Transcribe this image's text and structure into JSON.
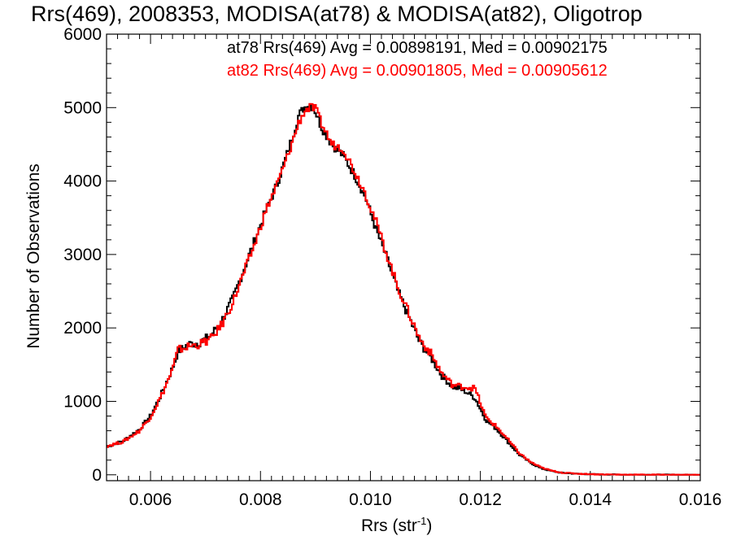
{
  "chart_data": {
    "type": "line",
    "title": "Rrs(469), 2008353, MODISA(at78) & MODISA(at82), Oligotrop",
    "xlabel": "Rrs (str",
    "xlabel_sup": "-1",
    "xlabel_close": ")",
    "ylabel": "Number of Observations",
    "xlim": [
      0.0052,
      0.016
    ],
    "ylim": [
      -80,
      6000
    ],
    "x_ticks": [
      0.006,
      0.008,
      0.01,
      0.012,
      0.014,
      0.016
    ],
    "x_tick_labels": [
      "0.006",
      "0.008",
      "0.010",
      "0.012",
      "0.014",
      "0.016"
    ],
    "y_ticks": [
      0,
      1000,
      2000,
      3000,
      4000,
      5000,
      6000
    ],
    "y_tick_labels": [
      "0",
      "1000",
      "2000",
      "3000",
      "4000",
      "5000",
      "6000"
    ],
    "legend_placement": "top-right",
    "legend": [
      {
        "text": "at78 Rrs(469) Avg = 0.00898191, Med = 0.00902175",
        "color": "#000000"
      },
      {
        "text": "at82 Rrs(469) Avg = 0.00901805, Med = 0.00905612",
        "color": "#ff0000"
      }
    ],
    "x": [
      0.0052,
      0.0055,
      0.0058,
      0.006,
      0.0062,
      0.0064,
      0.0065,
      0.0067,
      0.0069,
      0.0071,
      0.0073,
      0.0075,
      0.0077,
      0.0079,
      0.0081,
      0.0083,
      0.0085,
      0.0087,
      0.0088,
      0.0089,
      0.009,
      0.0091,
      0.0093,
      0.0095,
      0.0097,
      0.0099,
      0.0101,
      0.0103,
      0.0105,
      0.0107,
      0.0109,
      0.0111,
      0.0113,
      0.0115,
      0.0117,
      0.0119,
      0.0121,
      0.0123,
      0.0125,
      0.0127,
      0.0129,
      0.0131,
      0.0133,
      0.0135,
      0.0138,
      0.0141,
      0.0145,
      0.015,
      0.0155,
      0.016
    ],
    "series": [
      {
        "name": "at78",
        "color": "#000000",
        "values": [
          380,
          460,
          620,
          800,
          1100,
          1450,
          1680,
          1780,
          1800,
          1900,
          2100,
          2400,
          2800,
          3200,
          3600,
          3950,
          4400,
          4900,
          5000,
          5050,
          4950,
          4750,
          4500,
          4350,
          4100,
          3800,
          3350,
          2950,
          2500,
          2150,
          1800,
          1600,
          1350,
          1200,
          1150,
          1050,
          750,
          620,
          450,
          280,
          170,
          90,
          50,
          25,
          12,
          6,
          3,
          1,
          0,
          0
        ]
      },
      {
        "name": "at82",
        "color": "#ff0000",
        "values": [
          390,
          450,
          600,
          790,
          1080,
          1430,
          1700,
          1750,
          1780,
          1850,
          2050,
          2350,
          2750,
          3150,
          3600,
          3950,
          4350,
          4800,
          4950,
          5000,
          4980,
          4800,
          4500,
          4450,
          4150,
          3850,
          3450,
          3000,
          2550,
          2200,
          1850,
          1650,
          1380,
          1220,
          1200,
          1180,
          780,
          650,
          480,
          300,
          180,
          100,
          55,
          28,
          14,
          7,
          3,
          1,
          0,
          0
        ]
      }
    ]
  }
}
